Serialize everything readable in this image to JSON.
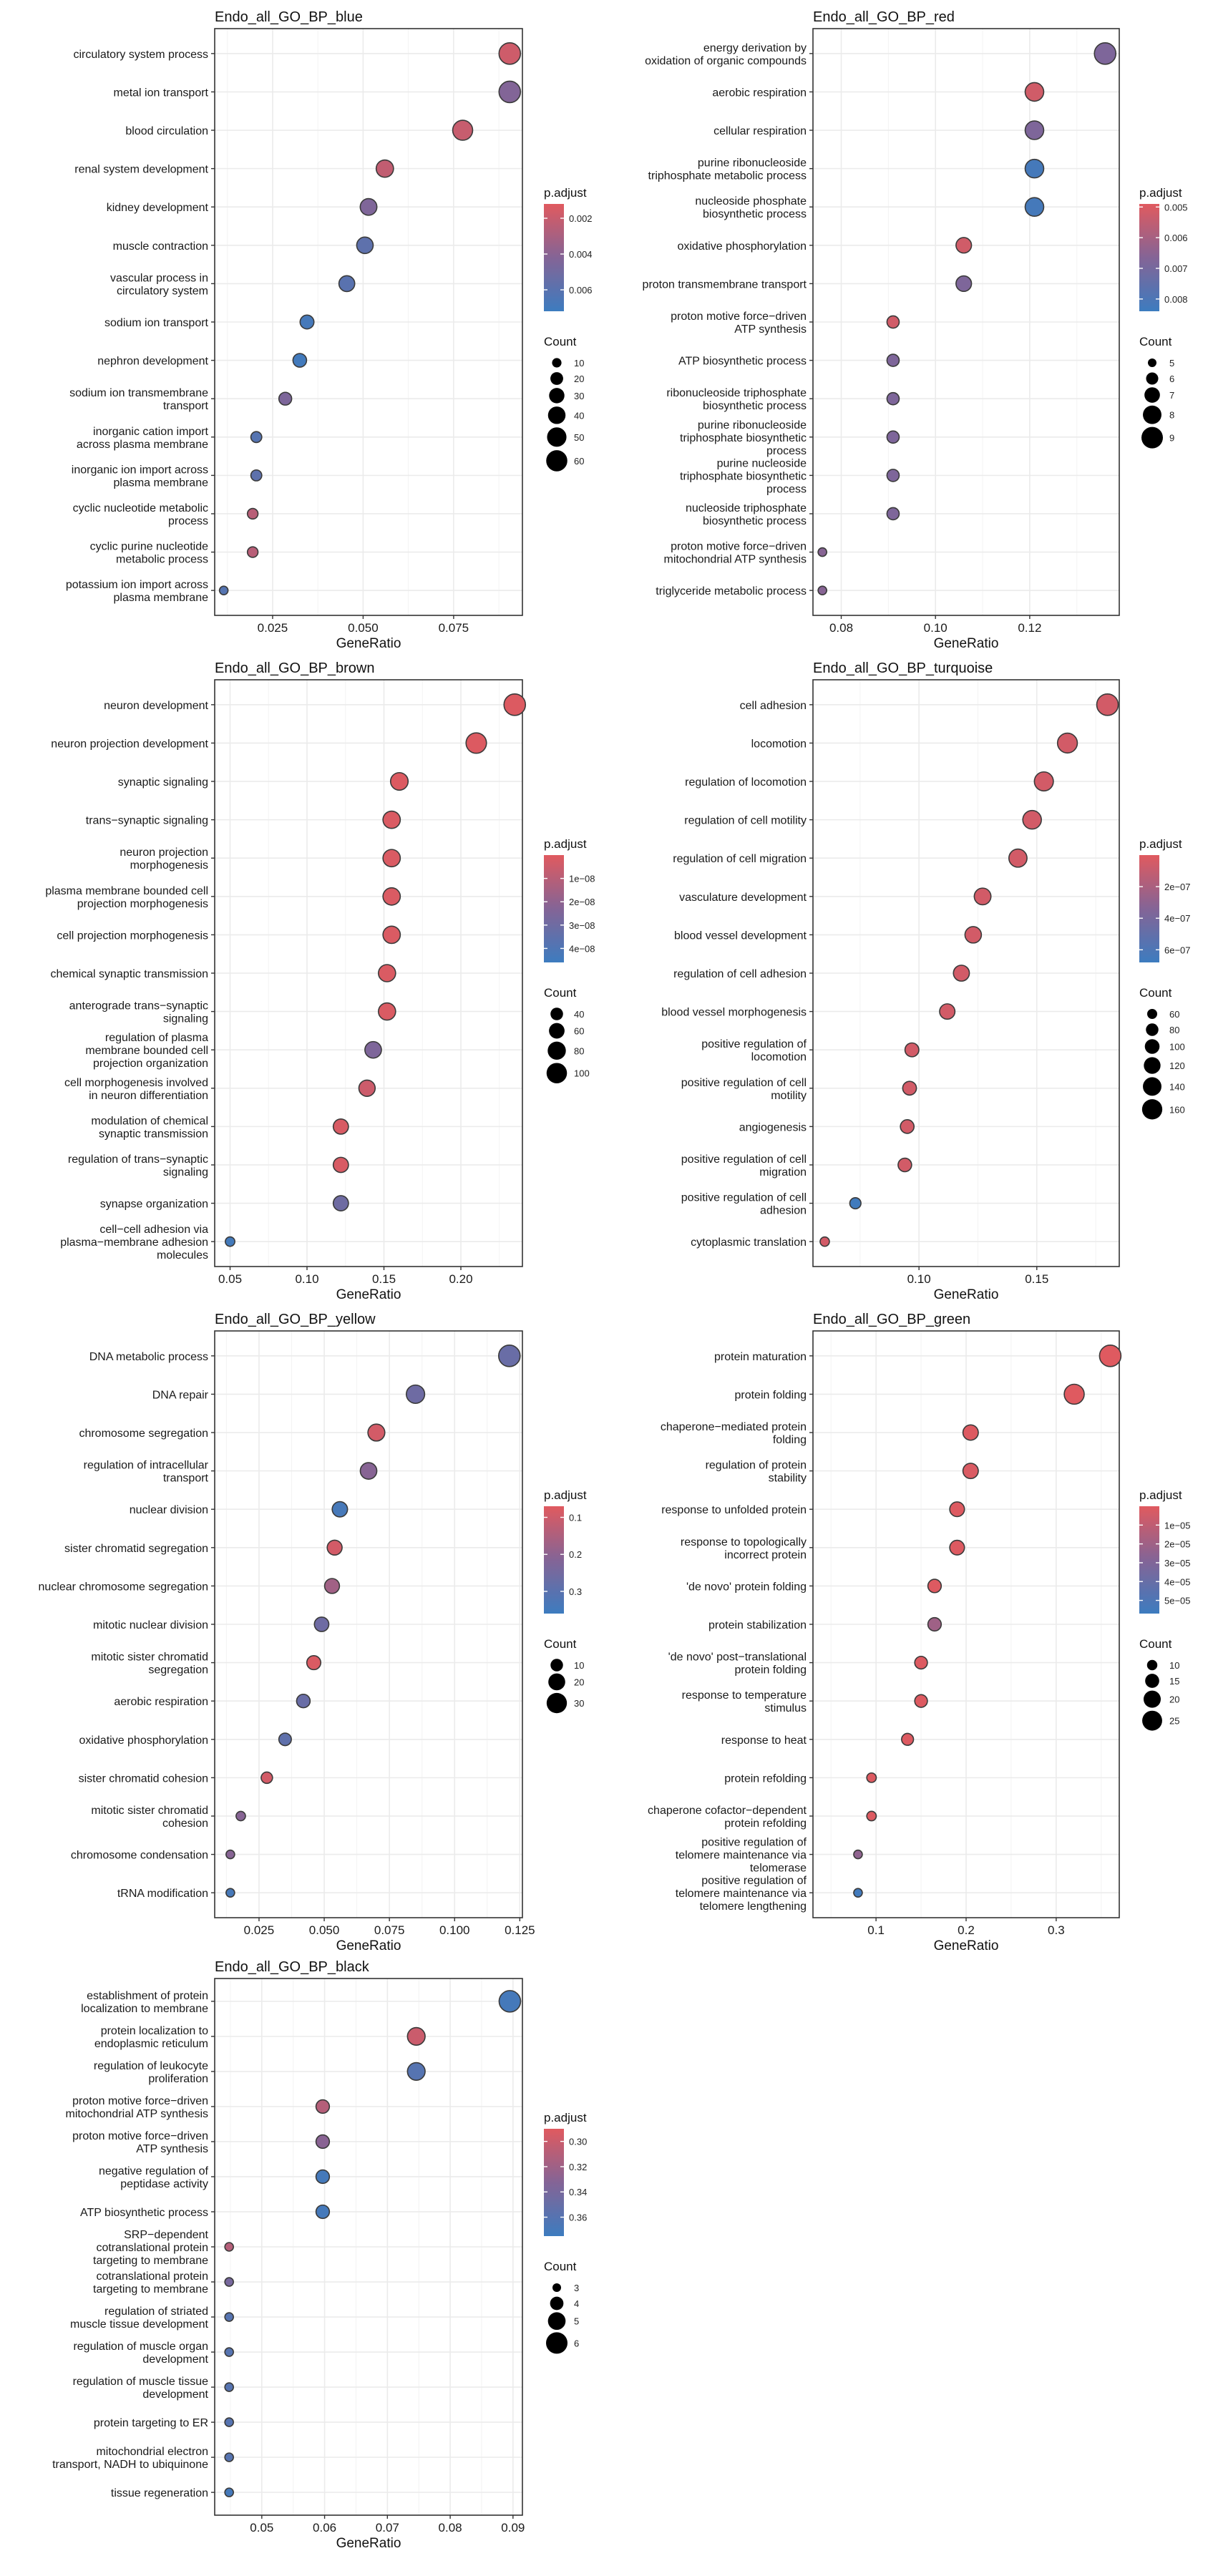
{
  "chart_data": [
    {
      "type": "scatter",
      "title": "Endo_all_GO_BP_blue",
      "xlabel": "GeneRatio",
      "xlim": [
        0.009,
        0.094
      ],
      "xticks": [
        0.025,
        0.05,
        0.075
      ],
      "xtick_labels": [
        "0.025",
        "0.050",
        "0.075"
      ],
      "categories": [
        "circulatory system process",
        "metal ion transport",
        "blood circulation",
        "renal system development",
        "kidney development",
        "muscle contraction",
        "vascular process in\ncirculatory system",
        "sodium ion transport",
        "nephron development",
        "sodium ion transmembrane\ntransport",
        "inorganic cation import\nacross plasma membrane",
        "inorganic ion import across\nplasma membrane",
        "cyclic nucleotide metabolic\nprocess",
        "cyclic purine nucleotide\nmetabolic process",
        "potassium ion import across\nplasma membrane"
      ],
      "x": [
        0.0905,
        0.0905,
        0.0775,
        0.056,
        0.0515,
        0.0505,
        0.0455,
        0.0345,
        0.0325,
        0.0285,
        0.0205,
        0.0205,
        0.0195,
        0.0195,
        0.0115
      ],
      "count": [
        62,
        62,
        53,
        39,
        36,
        35,
        32,
        24,
        23,
        20,
        14,
        14,
        13,
        13,
        8
      ],
      "p_adjust": [
        0.0018,
        0.0043,
        0.002,
        0.0022,
        0.0044,
        0.0058,
        0.006,
        0.0068,
        0.007,
        0.0045,
        0.0062,
        0.0058,
        0.0025,
        0.0025,
        0.0062
      ],
      "color_legend": {
        "title": "p.adjust",
        "range": [
          0.0012,
          0.0072
        ],
        "ticks": [
          0.002,
          0.004,
          0.006
        ],
        "tick_labels": [
          "0.002",
          "0.004",
          "0.006"
        ]
      },
      "size_legend": {
        "title": "Count",
        "values": [
          10,
          20,
          30,
          40,
          50,
          60
        ],
        "labels": [
          "10",
          "20",
          "30",
          "40",
          "50",
          "60"
        ]
      },
      "size_range": [
        8,
        62
      ],
      "grid": true,
      "legend_position": "right"
    },
    {
      "type": "scatter",
      "title": "Endo_all_GO_BP_red",
      "xlabel": "GeneRatio",
      "xlim": [
        0.074,
        0.139
      ],
      "xticks": [
        0.08,
        0.1,
        0.12
      ],
      "xtick_labels": [
        "0.08",
        "0.10",
        "0.12"
      ],
      "categories": [
        "energy derivation by\noxidation of organic compounds",
        "aerobic respiration",
        "cellular respiration",
        "purine ribonucleoside\ntriphosphate metabolic process",
        "nucleoside phosphate\nbiosynthetic process",
        "oxidative phosphorylation",
        "proton transmembrane transport",
        "proton motive force−driven\nATP synthesis",
        "ATP biosynthetic process",
        "ribonucleoside triphosphate\nbiosynthetic process",
        "purine ribonucleoside\ntriphosphate biosynthetic\nprocess",
        "purine nucleoside\ntriphosphate biosynthetic\nprocess",
        "nucleoside triphosphate\nbiosynthetic process",
        "proton motive force−driven\nmitochondrial ATP synthesis",
        "triglyceride metabolic process"
      ],
      "x": [
        0.136,
        0.121,
        0.121,
        0.121,
        0.121,
        0.106,
        0.106,
        0.091,
        0.091,
        0.091,
        0.091,
        0.091,
        0.091,
        0.076,
        0.076
      ],
      "count": [
        9,
        8,
        8,
        8,
        8,
        7,
        7,
        6,
        6,
        6,
        6,
        6,
        6,
        5,
        5
      ],
      "p_adjust": [
        0.0068,
        0.0052,
        0.0068,
        0.0082,
        0.0082,
        0.0052,
        0.0068,
        0.0052,
        0.0068,
        0.0068,
        0.0068,
        0.0068,
        0.0068,
        0.0066,
        0.0066
      ],
      "color_legend": {
        "title": "p.adjust",
        "range": [
          0.0049,
          0.0084
        ],
        "ticks": [
          0.005,
          0.006,
          0.007,
          0.008
        ],
        "tick_labels": [
          "0.005",
          "0.006",
          "0.007",
          "0.008"
        ]
      },
      "size_legend": {
        "title": "Count",
        "values": [
          5,
          6,
          7,
          8,
          9
        ],
        "labels": [
          "5",
          "6",
          "7",
          "8",
          "9"
        ]
      },
      "size_range": [
        5,
        9
      ],
      "grid": true,
      "legend_position": "right"
    },
    {
      "type": "scatter",
      "title": "Endo_all_GO_BP_brown",
      "xlabel": "GeneRatio",
      "xlim": [
        0.04,
        0.24
      ],
      "xticks": [
        0.05,
        0.1,
        0.15,
        0.2
      ],
      "xtick_labels": [
        "0.05",
        "0.10",
        "0.15",
        "0.20"
      ],
      "categories": [
        "neuron development",
        "neuron projection development",
        "synaptic signaling",
        "trans−synaptic signaling",
        "neuron projection\nmorphogenesis",
        "plasma membrane bounded cell\nprojection morphogenesis",
        "cell projection morphogenesis",
        "chemical synaptic transmission",
        "anterograde trans−synaptic\nsignaling",
        "regulation of plasma\nmembrane bounded cell\nprojection organization",
        "cell morphogenesis involved\nin neuron differentiation",
        "modulation of chemical\nsynaptic transmission",
        "regulation of trans−synaptic\nsignaling",
        "synapse organization",
        "cell−cell adhesion via\nplasma−membrane adhesion\nmolecules"
      ],
      "x": [
        0.235,
        0.21,
        0.16,
        0.155,
        0.155,
        0.155,
        0.155,
        0.152,
        0.152,
        0.143,
        0.139,
        0.122,
        0.122,
        0.122,
        0.05
      ],
      "count": [
        110,
        100,
        75,
        73,
        73,
        73,
        73,
        72,
        72,
        67,
        65,
        57,
        57,
        57,
        24
      ],
      "p_adjust": [
        1e-09,
        1e-09,
        1e-09,
        1.5e-09,
        1.5e-09,
        1.5e-09,
        1.5e-09,
        1.5e-09,
        1.5e-09,
        2.5e-08,
        5e-09,
        2e-09,
        2e-09,
        3e-08,
        4.4e-08
      ],
      "color_legend": {
        "title": "p.adjust",
        "range": [
          0.0,
          4.6e-08
        ],
        "ticks": [
          1e-08,
          2e-08,
          3e-08,
          4e-08
        ],
        "tick_labels": [
          "1e−08",
          "2e−08",
          "3e−08",
          "4e−08"
        ]
      },
      "size_legend": {
        "title": "Count",
        "values": [
          40,
          60,
          80,
          100
        ],
        "labels": [
          "40",
          "60",
          "80",
          "100"
        ]
      },
      "size_range": [
        20,
        110
      ],
      "grid": true,
      "legend_position": "right"
    },
    {
      "type": "scatter",
      "title": "Endo_all_GO_BP_turquoise",
      "xlabel": "GeneRatio",
      "xlim": [
        0.055,
        0.185
      ],
      "xticks": [
        0.1,
        0.15
      ],
      "xtick_labels": [
        "0.10",
        "0.15"
      ],
      "categories": [
        "cell adhesion",
        "locomotion",
        "regulation of locomotion",
        "regulation of cell motility",
        "regulation of cell migration",
        "vasculature development",
        "blood vessel development",
        "regulation of cell adhesion",
        "blood vessel morphogenesis",
        "positive regulation of\nlocomotion",
        "positive regulation of cell\nmotility",
        "angiogenesis",
        "positive regulation of cell\nmigration",
        "positive regulation of cell\nadhesion",
        "cytoplasmic translation"
      ],
      "x": [
        0.18,
        0.163,
        0.153,
        0.148,
        0.142,
        0.127,
        0.123,
        0.118,
        0.112,
        0.097,
        0.096,
        0.095,
        0.094,
        0.073,
        0.06
      ],
      "count": [
        175,
        155,
        145,
        140,
        135,
        120,
        117,
        112,
        106,
        92,
        91,
        90,
        89,
        69,
        55
      ],
      "p_adjust": [
        5e-08,
        5e-08,
        5e-08,
        5e-08,
        5e-08,
        5e-08,
        5e-08,
        5e-08,
        5e-08,
        5e-08,
        5e-08,
        5e-08,
        5e-08,
        6.6e-07,
        5e-08
      ],
      "color_legend": {
        "title": "p.adjust",
        "range": [
          0.0,
          6.8e-07
        ],
        "ticks": [
          2e-07,
          4e-07,
          6e-07
        ],
        "tick_labels": [
          "2e−07",
          "4e−07",
          "6e−07"
        ]
      },
      "size_legend": {
        "title": "Count",
        "values": [
          60,
          80,
          100,
          120,
          140,
          160
        ],
        "labels": [
          "60",
          "80",
          "100",
          "120",
          "140",
          "160"
        ]
      },
      "size_range": [
        50,
        175
      ],
      "grid": true,
      "legend_position": "right"
    },
    {
      "type": "scatter",
      "title": "Endo_all_GO_BP_yellow",
      "xlabel": "GeneRatio",
      "xlim": [
        0.008,
        0.126
      ],
      "xticks": [
        0.025,
        0.05,
        0.075,
        0.1,
        0.125
      ],
      "xtick_labels": [
        "0.025",
        "0.050",
        "0.075",
        "0.100",
        "0.125"
      ],
      "categories": [
        "DNA metabolic process",
        "DNA repair",
        "chromosome segregation",
        "regulation of intracellular\ntransport",
        "nuclear division",
        "sister chromatid segregation",
        "nuclear chromosome segregation",
        "mitotic nuclear division",
        "mitotic sister chromatid\nsegregation",
        "aerobic respiration",
        "oxidative phosphorylation",
        "sister chromatid cohesion",
        "mitotic sister chromatid\ncohesion",
        "chromosome condensation",
        "tRNA modification"
      ],
      "x": [
        0.121,
        0.085,
        0.07,
        0.067,
        0.056,
        0.054,
        0.053,
        0.049,
        0.046,
        0.042,
        0.035,
        0.028,
        0.018,
        0.014,
        0.014
      ],
      "count": [
        34,
        24,
        20,
        19,
        16,
        15,
        15,
        14,
        13,
        12,
        10,
        8,
        5,
        4,
        4
      ],
      "p_adjust": [
        0.27,
        0.26,
        0.09,
        0.21,
        0.34,
        0.09,
        0.17,
        0.26,
        0.08,
        0.27,
        0.29,
        0.09,
        0.21,
        0.21,
        0.34
      ],
      "color_legend": {
        "title": "p.adjust",
        "range": [
          0.07,
          0.36
        ],
        "ticks": [
          0.1,
          0.2,
          0.3
        ],
        "tick_labels": [
          "0.1",
          "0.2",
          "0.3"
        ]
      },
      "size_legend": {
        "title": "Count",
        "values": [
          10,
          20,
          30
        ],
        "labels": [
          "10",
          "20",
          "30"
        ]
      },
      "size_range": [
        4,
        34
      ],
      "grid": true,
      "legend_position": "right"
    },
    {
      "type": "scatter",
      "title": "Endo_all_GO_BP_green",
      "xlabel": "GeneRatio",
      "xlim": [
        0.03,
        0.37
      ],
      "xticks": [
        0.1,
        0.2,
        0.3
      ],
      "xtick_labels": [
        "0.1",
        "0.2",
        "0.3"
      ],
      "categories": [
        "protein maturation",
        "protein folding",
        "chaperone−mediated protein\nfolding",
        "regulation of protein\nstability",
        "response to unfolded protein",
        "response to topologically\nincorrect protein",
        "'de novo' protein folding",
        "protein stabilization",
        "'de novo' post−translational\nprotein folding",
        "response to temperature\nstimulus",
        "response to heat",
        "protein refolding",
        "chaperone cofactor−dependent\nprotein refolding",
        "positive regulation of\ntelomere maintenance via\ntelomerase",
        "positive regulation of\ntelomere maintenance via\ntelomere lengthening"
      ],
      "x": [
        0.36,
        0.32,
        0.205,
        0.205,
        0.19,
        0.19,
        0.165,
        0.165,
        0.15,
        0.15,
        0.135,
        0.095,
        0.095,
        0.08,
        0.08
      ],
      "count": [
        28,
        25,
        17,
        17,
        16,
        16,
        14,
        14,
        13,
        13,
        12,
        9,
        9,
        8,
        8
      ],
      "p_adjust": [
        3e-07,
        3e-07,
        1e-06,
        2e-06,
        1e-06,
        1e-06,
        1e-06,
        2e-05,
        1e-06,
        1e-06,
        1e-06,
        1e-06,
        1e-06,
        2.5e-05,
        5.5e-05
      ],
      "color_legend": {
        "title": "p.adjust",
        "range": [
          0.0,
          5.7e-05
        ],
        "ticks": [
          1e-05,
          2e-05,
          3e-05,
          4e-05,
          5e-05
        ],
        "tick_labels": [
          "1e−05",
          "2e−05",
          "3e−05",
          "4e−05",
          "5e−05"
        ]
      },
      "size_legend": {
        "title": "Count",
        "values": [
          10,
          15,
          20,
          25
        ],
        "labels": [
          "10",
          "15",
          "20",
          "25"
        ]
      },
      "size_range": [
        8,
        28
      ],
      "grid": true,
      "legend_position": "right"
    },
    {
      "type": "scatter",
      "title": "Endo_all_GO_BP_black",
      "xlabel": "GeneRatio",
      "xlim": [
        0.0425,
        0.0915
      ],
      "xticks": [
        0.05,
        0.06,
        0.07,
        0.08,
        0.09
      ],
      "xtick_labels": [
        "0.05",
        "0.06",
        "0.07",
        "0.08",
        "0.09"
      ],
      "categories": [
        "establishment of protein\nlocalization to membrane",
        "protein localization to\nendoplasmic reticulum",
        "regulation of leukocyte\nproliferation",
        "proton motive force−driven\nmitochondrial ATP synthesis",
        "proton motive force−driven\nATP synthesis",
        "negative regulation of\npeptidase activity",
        "ATP biosynthetic process",
        "SRP−dependent\ncotranslational protein\ntargeting to membrane",
        "cotranslational protein\ntargeting to membrane",
        "regulation of striated\nmuscle tissue development",
        "regulation of muscle organ\ndevelopment",
        "regulation of muscle tissue\ndevelopment",
        "protein targeting to ER",
        "mitochondrial electron\ntransport, NADH to ubiquinone",
        "tissue regeneration"
      ],
      "x": [
        0.0895,
        0.0746,
        0.0746,
        0.0597,
        0.0597,
        0.0597,
        0.0597,
        0.0448,
        0.0448,
        0.0448,
        0.0448,
        0.0448,
        0.0448,
        0.0448,
        0.0448
      ],
      "count": [
        6,
        5,
        5,
        4,
        4,
        4,
        4,
        3,
        3,
        3,
        3,
        3,
        3,
        3,
        3
      ],
      "p_adjust": [
        0.37,
        0.3,
        0.36,
        0.31,
        0.33,
        0.37,
        0.37,
        0.31,
        0.34,
        0.36,
        0.36,
        0.36,
        0.36,
        0.36,
        0.37
      ],
      "color_legend": {
        "title": "p.adjust",
        "range": [
          0.29,
          0.375
        ],
        "ticks": [
          0.3,
          0.32,
          0.34,
          0.36
        ],
        "tick_labels": [
          "0.30",
          "0.32",
          "0.34",
          "0.36"
        ]
      },
      "size_legend": {
        "title": "Count",
        "values": [
          3,
          4,
          5,
          6
        ],
        "labels": [
          "3",
          "4",
          "5",
          "6"
        ]
      },
      "size_range": [
        3,
        6
      ],
      "grid": true,
      "legend_position": "right"
    }
  ],
  "colors": {
    "low_padj": "#E05A5F",
    "high_padj": "#3D7CBF",
    "point_outline": "#3a3a3a",
    "grid": "#EBEBEB",
    "panel_border": "#333333"
  }
}
